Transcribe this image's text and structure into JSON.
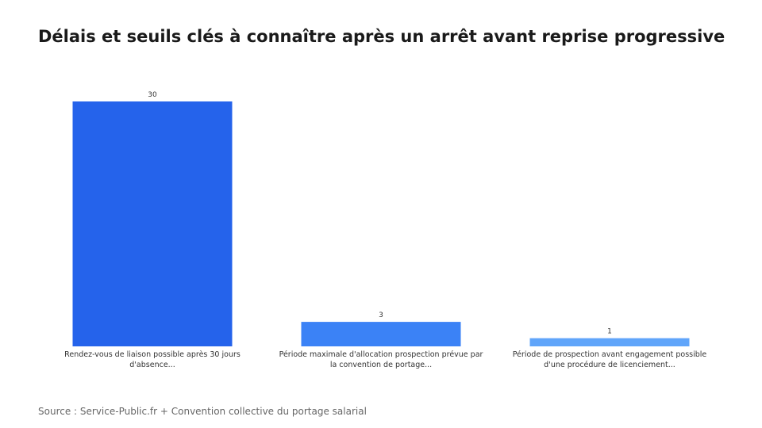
{
  "chart_data": {
    "type": "bar",
    "title": "Délais et seuils clés à connaître après un arrêt avant reprise progressive",
    "categories": [
      "Rendez-vous de liaison possible après 30 jours d'absence...",
      "Période maximale d'allocation prospection prévue par la convention de portage...",
      "Période de prospection avant engagement possible d'une procédure de licenciement..."
    ],
    "values": [
      30,
      3,
      1
    ],
    "colors": [
      "#2563eb",
      "#3b82f6",
      "#60a5fa"
    ],
    "ylim": [
      0,
      30
    ],
    "xlabel": "",
    "ylabel": "",
    "grid": false,
    "legend": "none"
  },
  "source": "Source : Service-Public.fr + Convention collective du portage salarial"
}
